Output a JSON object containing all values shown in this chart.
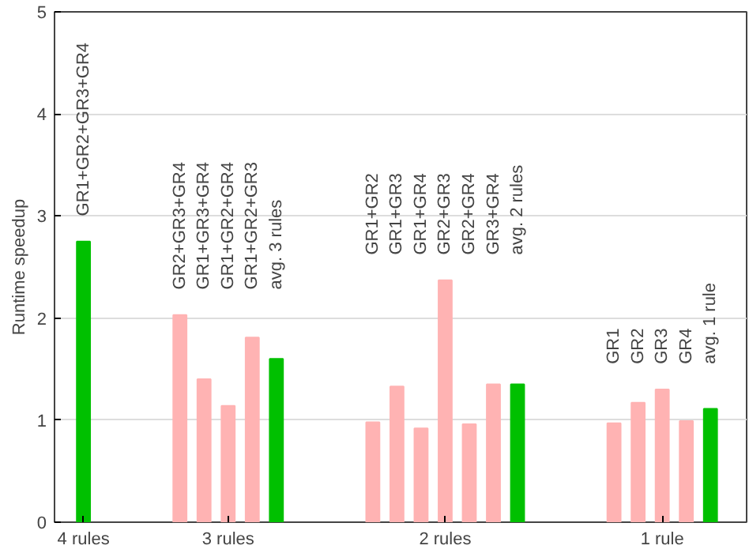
{
  "chart_data": {
    "type": "bar",
    "ylabel": "Runtime speedup",
    "categories": [
      "4 rules",
      null,
      null,
      null,
      null,
      null,
      "3 rules",
      null,
      null,
      null,
      null,
      null,
      null,
      null,
      null,
      "2 rules",
      null,
      null,
      null,
      null,
      null,
      null,
      null,
      null,
      "1 rule",
      null,
      null
    ],
    "values": [
      2.75,
      null,
      null,
      null,
      2.03,
      1.4,
      1.14,
      1.81,
      1.6,
      null,
      null,
      null,
      0.98,
      1.33,
      0.92,
      2.37,
      0.96,
      1.35,
      1.35,
      null,
      null,
      null,
      0.97,
      1.17,
      1.3,
      0.99,
      1.11
    ],
    "colors": [
      "#00c000",
      null,
      null,
      null,
      "#ffb3b3",
      "#ffb3b3",
      "#ffb3b3",
      "#ffb3b3",
      "#00c000",
      null,
      null,
      null,
      "#ffb3b3",
      "#ffb3b3",
      "#ffb3b3",
      "#ffb3b3",
      "#ffb3b3",
      "#ffb3b3",
      "#00c000",
      null,
      null,
      null,
      "#ffb3b3",
      "#ffb3b3",
      "#ffb3b3",
      "#ffb3b3",
      "#00c000"
    ],
    "ylim": [
      0,
      5
    ],
    "yticks": [
      0,
      1,
      2,
      3,
      4,
      5
    ],
    "grid": "y",
    "annotations": [
      "GR1+GR2+GR3+GR4",
      "GR2+GR3+GR4",
      "GR1+GR3+GR4",
      "GR1+GR2+GR4",
      "GR1+GR2+GR3",
      "avg. 3 rules",
      "GR1+GR2",
      "GR1+GR3",
      "GR1+GR4",
      "GR2+GR3",
      "GR2+GR4",
      "GR3+GR4",
      "avg. 2 rules",
      "GR1",
      "GR2",
      "GR3",
      "GR4",
      "avg. 1 rule"
    ]
  }
}
